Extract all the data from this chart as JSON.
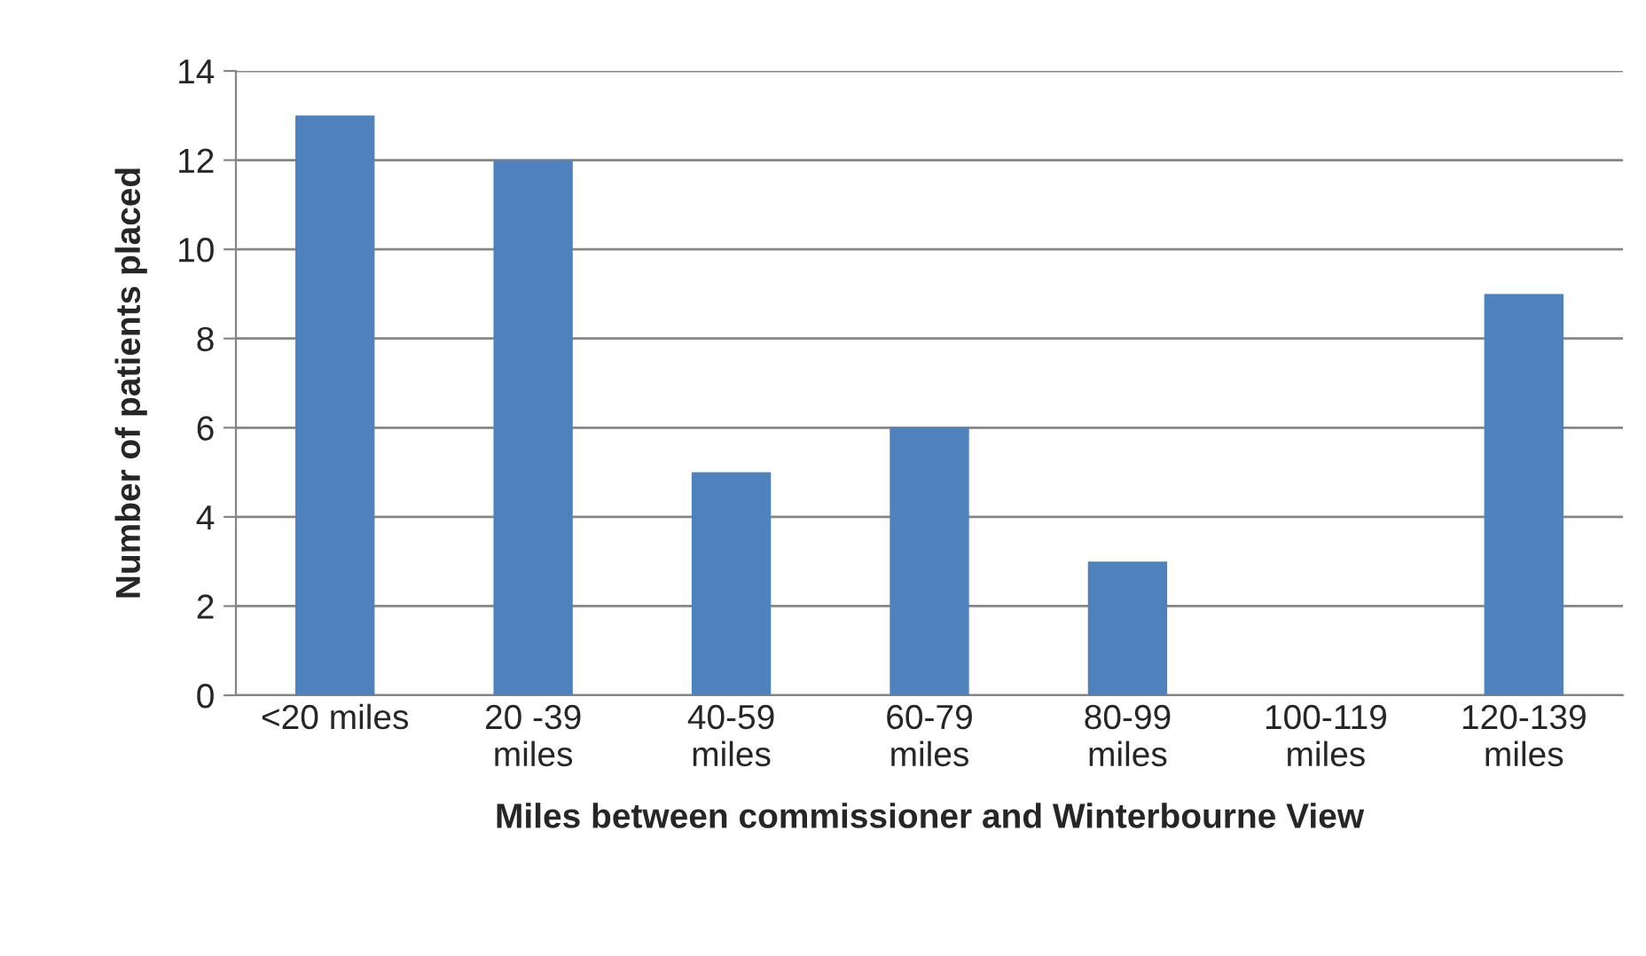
{
  "chart_data": {
    "type": "bar",
    "xlabel": "Miles between commissioner and Winterbourne View",
    "ylabel": "Number of patients placed",
    "categories": [
      "<20 miles",
      "20 -39\nmiles",
      "40-59\nmiles",
      "60-79\nmiles",
      "80-99\nmiles",
      "100-119\nmiles",
      "120-139\nmiles"
    ],
    "values": [
      13,
      12,
      5,
      6,
      3,
      0,
      9
    ],
    "color": "#4f81bd",
    "ylim": [
      0,
      14
    ],
    "yticks": [
      0,
      2,
      4,
      6,
      8,
      10,
      12,
      14
    ],
    "grid": "y",
    "legend": false
  }
}
